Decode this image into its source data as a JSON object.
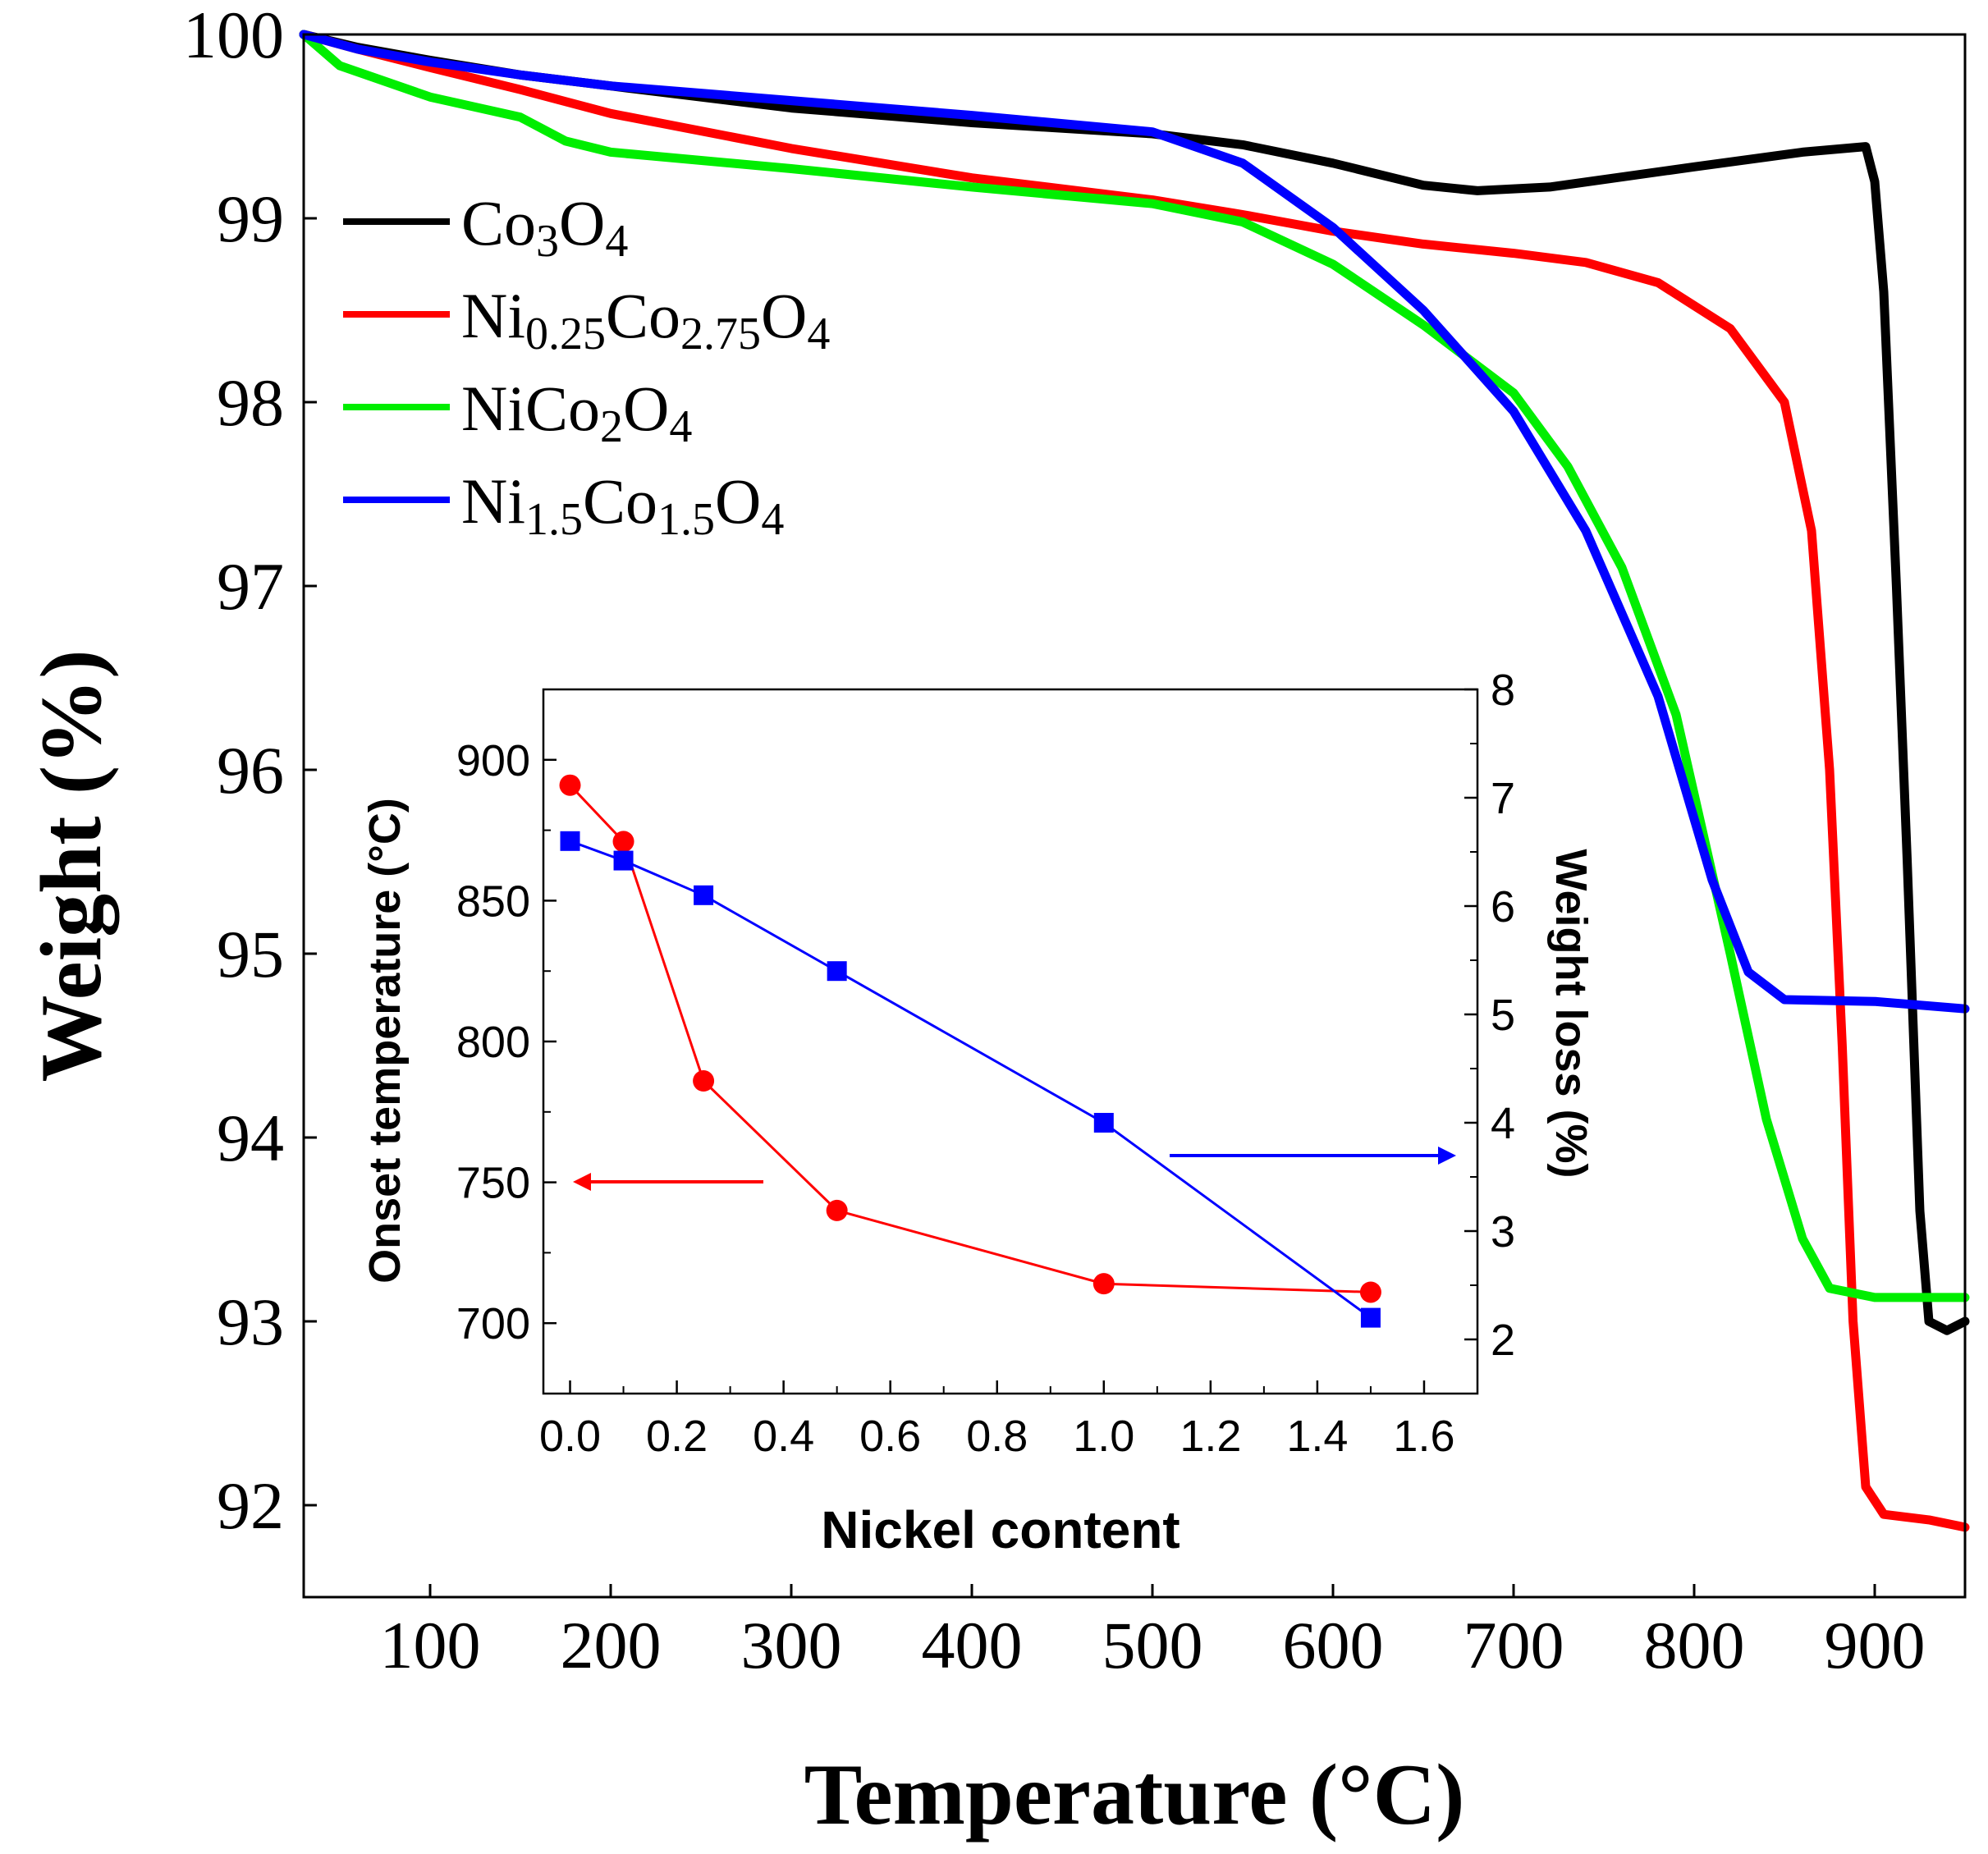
{
  "chart_data": [
    {
      "type": "line",
      "xlabel": "Temperature (°C)",
      "ylabel": "Weight (%)",
      "xlim": [
        30,
        950
      ],
      "ylim": [
        91.5,
        100
      ],
      "xticks": [
        100,
        200,
        300,
        400,
        500,
        600,
        700,
        800,
        900
      ],
      "yticks": [
        92,
        93,
        94,
        95,
        96,
        97,
        98,
        99,
        100
      ],
      "legend_position": "top-left",
      "series": [
        {
          "name": "Co3O4",
          "legend": [
            {
              "t": "Co"
            },
            {
              "t": "3",
              "sub": true
            },
            {
              "t": "O"
            },
            {
              "t": "4",
              "sub": true
            }
          ],
          "color": "#000000",
          "points": [
            [
              30,
              100
            ],
            [
              60,
              99.93
            ],
            [
              100,
              99.86
            ],
            [
              150,
              99.78
            ],
            [
              200,
              99.72
            ],
            [
              300,
              99.6
            ],
            [
              400,
              99.52
            ],
            [
              500,
              99.46
            ],
            [
              550,
              99.4
            ],
            [
              600,
              99.3
            ],
            [
              650,
              99.18
            ],
            [
              680,
              99.15
            ],
            [
              720,
              99.17
            ],
            [
              800,
              99.28
            ],
            [
              860,
              99.36
            ],
            [
              895,
              99.39
            ],
            [
              900,
              99.2
            ],
            [
              905,
              98.6
            ],
            [
              912,
              97.0
            ],
            [
              918,
              95.5
            ],
            [
              925,
              93.6
            ],
            [
              930,
              93.0
            ],
            [
              940,
              92.95
            ],
            [
              950,
              93.0
            ]
          ]
        },
        {
          "name": "Ni0.25Co2.75O4",
          "legend": [
            {
              "t": "Ni"
            },
            {
              "t": "0.25",
              "sub": true
            },
            {
              "t": "Co"
            },
            {
              "t": "2.75",
              "sub": true
            },
            {
              "t": "O"
            },
            {
              "t": "4",
              "sub": true
            }
          ],
          "color": "#ff0000",
          "points": [
            [
              30,
              100
            ],
            [
              60,
              99.92
            ],
            [
              100,
              99.82
            ],
            [
              150,
              99.7
            ],
            [
              200,
              99.57
            ],
            [
              300,
              99.38
            ],
            [
              400,
              99.22
            ],
            [
              500,
              99.1
            ],
            [
              550,
              99.02
            ],
            [
              600,
              98.93
            ],
            [
              650,
              98.86
            ],
            [
              700,
              98.81
            ],
            [
              740,
              98.76
            ],
            [
              780,
              98.65
            ],
            [
              820,
              98.4
            ],
            [
              850,
              98.0
            ],
            [
              865,
              97.3
            ],
            [
              875,
              96.0
            ],
            [
              882,
              94.5
            ],
            [
              888,
              93.0
            ],
            [
              895,
              92.1
            ],
            [
              905,
              91.95
            ],
            [
              930,
              91.92
            ],
            [
              950,
              91.88
            ]
          ]
        },
        {
          "name": "NiCo2O4",
          "legend": [
            {
              "t": "NiCo"
            },
            {
              "t": "2",
              "sub": true
            },
            {
              "t": "O"
            },
            {
              "t": "4",
              "sub": true
            }
          ],
          "color": "#00ee00",
          "points": [
            [
              30,
              100
            ],
            [
              50,
              99.83
            ],
            [
              100,
              99.66
            ],
            [
              150,
              99.55
            ],
            [
              175,
              99.42
            ],
            [
              200,
              99.36
            ],
            [
              300,
              99.27
            ],
            [
              400,
              99.17
            ],
            [
              500,
              99.08
            ],
            [
              550,
              98.98
            ],
            [
              600,
              98.75
            ],
            [
              650,
              98.42
            ],
            [
              700,
              98.05
            ],
            [
              730,
              97.65
            ],
            [
              760,
              97.1
            ],
            [
              790,
              96.3
            ],
            [
              820,
              95.0
            ],
            [
              840,
              94.1
            ],
            [
              860,
              93.45
            ],
            [
              875,
              93.18
            ],
            [
              900,
              93.13
            ],
            [
              950,
              93.13
            ]
          ]
        },
        {
          "name": "Ni1.5Co1.5O4",
          "legend": [
            {
              "t": "Ni"
            },
            {
              "t": "1.5",
              "sub": true
            },
            {
              "t": "Co"
            },
            {
              "t": "1.5",
              "sub": true
            },
            {
              "t": "O"
            },
            {
              "t": "4",
              "sub": true
            }
          ],
          "color": "#0000ff",
          "points": [
            [
              30,
              100
            ],
            [
              60,
              99.92
            ],
            [
              100,
              99.85
            ],
            [
              150,
              99.78
            ],
            [
              200,
              99.72
            ],
            [
              300,
              99.64
            ],
            [
              400,
              99.56
            ],
            [
              500,
              99.47
            ],
            [
              550,
              99.3
            ],
            [
              600,
              98.95
            ],
            [
              650,
              98.5
            ],
            [
              700,
              97.95
            ],
            [
              740,
              97.3
            ],
            [
              780,
              96.4
            ],
            [
              810,
              95.4
            ],
            [
              830,
              94.9
            ],
            [
              850,
              94.75
            ],
            [
              900,
              94.74
            ],
            [
              950,
              94.7
            ]
          ]
        }
      ]
    },
    {
      "type": "line",
      "xlabel": "Nickel content",
      "ylabel": "Onset temperature (°C)",
      "y2label": "Weight loss (%)",
      "xlim": [
        -0.05,
        1.7
      ],
      "ylim": [
        675,
        925
      ],
      "y2lim": [
        1.5,
        8
      ],
      "xticks": [
        "0.0",
        "0.2",
        "0.4",
        "0.6",
        "0.8",
        "1.0",
        "1.2",
        "1.4",
        "1.6"
      ],
      "yticks": [
        700,
        750,
        800,
        850,
        900
      ],
      "y2ticks": [
        2,
        3,
        4,
        5,
        6,
        7,
        8
      ],
      "series": [
        {
          "axis": "left",
          "marker": "circle",
          "color": "#ff0000",
          "x": [
            0,
            0.1,
            0.25,
            0.5,
            1.0,
            1.5
          ],
          "values": [
            891,
            871,
            786,
            740,
            714,
            711
          ]
        },
        {
          "axis": "right",
          "marker": "square",
          "color": "#0000ff",
          "x": [
            0,
            0.1,
            0.25,
            0.5,
            1.0,
            1.5
          ],
          "values": [
            6.6,
            6.42,
            6.1,
            5.4,
            4.0,
            2.2
          ]
        }
      ]
    }
  ]
}
